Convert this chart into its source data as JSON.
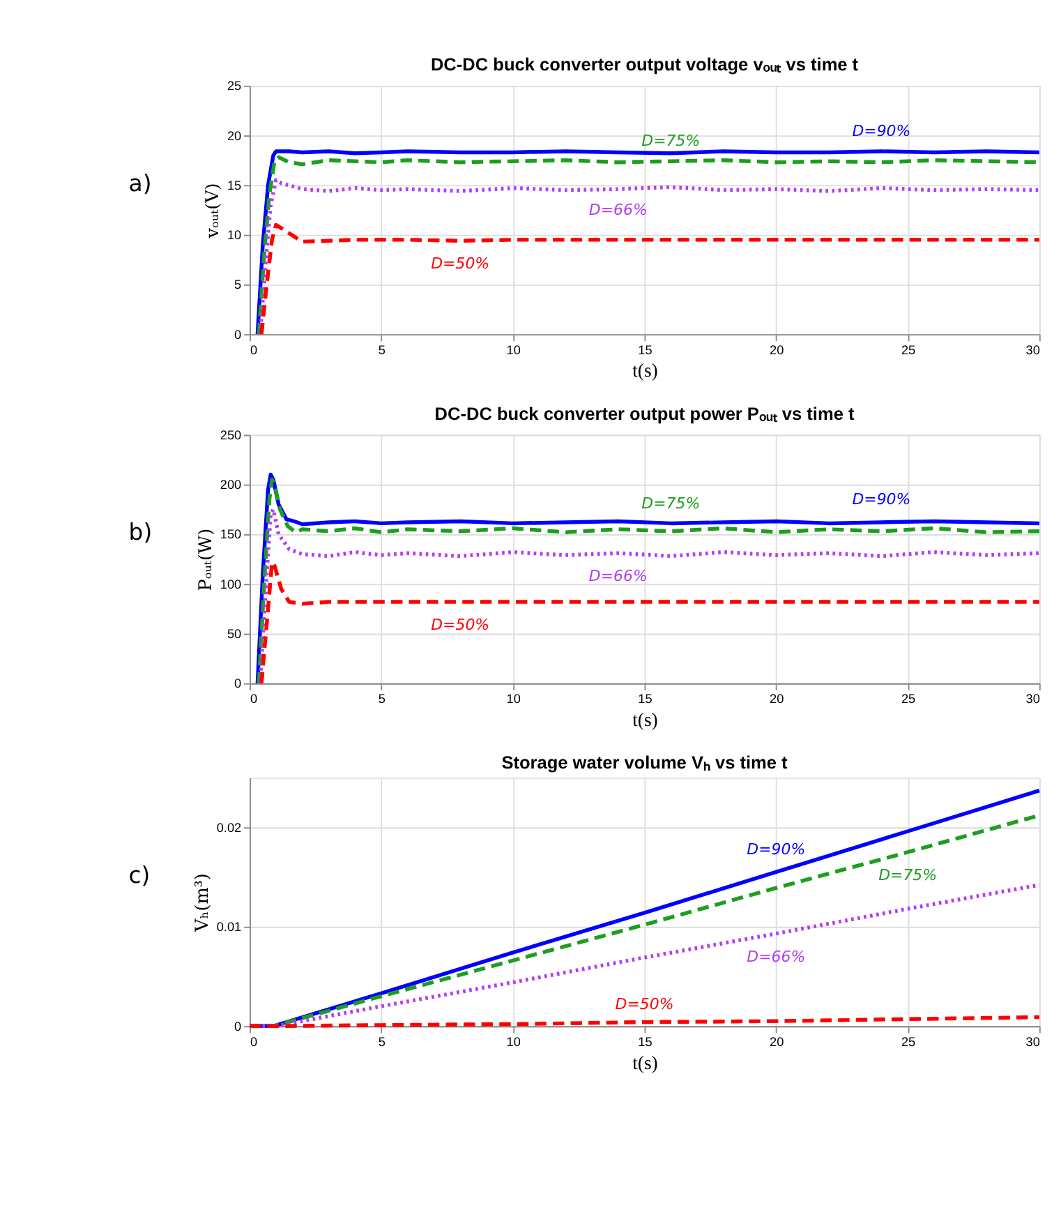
{
  "chart_data": [
    {
      "type": "line",
      "title": "DC-DC buck converter output voltage vₒᵤₜ vs time t",
      "xlabel": "t(s)",
      "ylabel": "vₒᵤₜ(V)",
      "xlim": [
        0,
        30
      ],
      "ylim": [
        0,
        25
      ],
      "xticks": [
        0,
        5,
        10,
        15,
        20,
        25,
        30
      ],
      "yticks": [
        0,
        5,
        10,
        15,
        20,
        25
      ],
      "grid": true,
      "annotations": [
        "a)"
      ],
      "series": [
        {
          "name": "D=90%",
          "color": "#0000ff",
          "line_style": "solid",
          "x": [
            0.3,
            0.5,
            0.7,
            0.9,
            1.0,
            1.5,
            2,
            3,
            4,
            5,
            6,
            8,
            10,
            12,
            14,
            16,
            18,
            20,
            22,
            24,
            26,
            28,
            30
          ],
          "values": [
            0,
            9,
            15,
            18,
            18.4,
            18.4,
            18.3,
            18.4,
            18.2,
            18.3,
            18.4,
            18.3,
            18.3,
            18.4,
            18.3,
            18.2,
            18.4,
            18.3,
            18.3,
            18.4,
            18.3,
            18.4,
            18.3
          ]
        },
        {
          "name": "D=75%",
          "color": "#1e9e1e",
          "line_style": "dashed",
          "x": [
            0.35,
            0.55,
            0.75,
            0.95,
            1.1,
            1.5,
            2,
            3,
            4,
            5,
            6,
            8,
            10,
            12,
            14,
            16,
            18,
            20,
            22,
            24,
            26,
            28,
            30
          ],
          "values": [
            0,
            8,
            14,
            17.5,
            17.8,
            17.3,
            17.1,
            17.5,
            17.4,
            17.3,
            17.5,
            17.3,
            17.4,
            17.5,
            17.3,
            17.4,
            17.5,
            17.3,
            17.4,
            17.3,
            17.5,
            17.4,
            17.3
          ]
        },
        {
          "name": "D=66%",
          "color": "#b43cf0",
          "line_style": "dotted",
          "x": [
            0.4,
            0.6,
            0.8,
            1.0,
            1.2,
            2,
            3,
            4,
            5,
            6,
            8,
            10,
            12,
            14,
            16,
            18,
            20,
            22,
            24,
            26,
            28,
            30
          ],
          "values": [
            0,
            7,
            13,
            15.5,
            15.2,
            14.6,
            14.4,
            14.7,
            14.5,
            14.6,
            14.4,
            14.7,
            14.5,
            14.6,
            14.8,
            14.5,
            14.6,
            14.4,
            14.7,
            14.5,
            14.6,
            14.5
          ]
        },
        {
          "name": "D=50%",
          "color": "#ff0000",
          "line_style": "dashed",
          "x": [
            0.45,
            0.65,
            0.85,
            1.0,
            1.3,
            2,
            3,
            4,
            5,
            6,
            8,
            10,
            12,
            14,
            16,
            18,
            20,
            22,
            24,
            26,
            28,
            30
          ],
          "values": [
            0,
            5,
            9.5,
            11,
            10.5,
            9.3,
            9.4,
            9.5,
            9.5,
            9.5,
            9.4,
            9.5,
            9.5,
            9.5,
            9.5,
            9.5,
            9.5,
            9.5,
            9.5,
            9.5,
            9.5,
            9.5
          ]
        }
      ]
    },
    {
      "type": "line",
      "title": "DC-DC buck converter output power Pₒᵤₜ vs time t",
      "xlabel": "t(s)",
      "ylabel": "Pₒᵤₜ(W)",
      "xlim": [
        0,
        30
      ],
      "ylim": [
        0,
        250
      ],
      "xticks": [
        0,
        5,
        10,
        15,
        20,
        25,
        30
      ],
      "yticks": [
        0,
        50,
        100,
        150,
        200,
        250
      ],
      "grid": true,
      "annotations": [
        "b)"
      ],
      "series": [
        {
          "name": "D=90%",
          "color": "#0000ff",
          "line_style": "solid",
          "x": [
            0.3,
            0.5,
            0.7,
            0.8,
            0.9,
            1.1,
            1.4,
            1.7,
            2,
            3,
            4,
            5,
            6,
            8,
            10,
            12,
            14,
            16,
            18,
            20,
            22,
            24,
            26,
            28,
            30
          ],
          "values": [
            0,
            110,
            195,
            210,
            205,
            180,
            165,
            163,
            160,
            162,
            163,
            161,
            162,
            163,
            161,
            162,
            163,
            161,
            162,
            163,
            161,
            162,
            163,
            162,
            161
          ]
        },
        {
          "name": "D=75%",
          "color": "#1e9e1e",
          "line_style": "dashed",
          "x": [
            0.35,
            0.55,
            0.75,
            0.85,
            0.95,
            1.15,
            1.45,
            1.75,
            2,
            3,
            4,
            5,
            6,
            8,
            10,
            12,
            14,
            16,
            18,
            20,
            22,
            24,
            26,
            28,
            30
          ],
          "values": [
            0,
            100,
            185,
            205,
            200,
            175,
            158,
            152,
            155,
            153,
            156,
            152,
            155,
            153,
            156,
            152,
            155,
            153,
            156,
            152,
            155,
            153,
            156,
            152,
            153
          ]
        },
        {
          "name": "D=66%",
          "color": "#b43cf0",
          "line_style": "dotted",
          "x": [
            0.4,
            0.6,
            0.8,
            0.9,
            1.1,
            1.5,
            2,
            3,
            4,
            5,
            6,
            8,
            10,
            12,
            14,
            16,
            18,
            20,
            22,
            24,
            26,
            28,
            30
          ],
          "values": [
            0,
            90,
            170,
            175,
            150,
            135,
            130,
            128,
            132,
            129,
            131,
            128,
            132,
            129,
            131,
            128,
            132,
            129,
            131,
            128,
            132,
            129,
            131
          ]
        },
        {
          "name": "D=50%",
          "color": "#ff0000",
          "line_style": "dashed",
          "x": [
            0.45,
            0.65,
            0.85,
            0.95,
            1.2,
            1.5,
            2,
            3,
            4,
            5,
            6,
            8,
            10,
            12,
            14,
            16,
            18,
            20,
            22,
            24,
            26,
            28,
            30
          ],
          "values": [
            0,
            60,
            122,
            118,
            95,
            82,
            80,
            82,
            82,
            82,
            82,
            82,
            82,
            82,
            82,
            82,
            82,
            82,
            82,
            82,
            82,
            82,
            82
          ]
        }
      ]
    },
    {
      "type": "line",
      "title": "Storage water volume Vₕ vs time t",
      "xlabel": "t(s)",
      "ylabel": "Vₕ(m³)",
      "xlim": [
        0,
        30
      ],
      "ylim": [
        0,
        0.025
      ],
      "xticks": [
        0,
        5,
        10,
        15,
        20,
        25,
        30
      ],
      "yticks": [
        0,
        0.01,
        0.02
      ],
      "grid": true,
      "annotations": [
        "c)"
      ],
      "series": [
        {
          "name": "D=90%",
          "color": "#0000ff",
          "line_style": "solid",
          "x": [
            0,
            0.9,
            5,
            10,
            15,
            20,
            25,
            30
          ],
          "values": [
            0,
            0,
            0.0033,
            0.0074,
            0.0114,
            0.0155,
            0.0196,
            0.0237
          ]
        },
        {
          "name": "D=75%",
          "color": "#1e9e1e",
          "line_style": "dashed",
          "x": [
            0,
            0.9,
            5,
            10,
            15,
            20,
            25,
            30
          ],
          "values": [
            0,
            0,
            0.003,
            0.0066,
            0.0102,
            0.0139,
            0.0175,
            0.0212
          ]
        },
        {
          "name": "D=66%",
          "color": "#b43cf0",
          "line_style": "dotted",
          "x": [
            0,
            1,
            5,
            10,
            15,
            20,
            25,
            30
          ],
          "values": [
            0,
            0,
            0.002,
            0.0044,
            0.0069,
            0.0093,
            0.0118,
            0.0142
          ]
        },
        {
          "name": "D=50%",
          "color": "#ff0000",
          "line_style": "dashed",
          "x": [
            0,
            1,
            5,
            10,
            15,
            20,
            25,
            30
          ],
          "values": [
            0,
            0,
            0.0001,
            0.0002,
            0.0004,
            0.0005,
            0.0007,
            0.0009
          ]
        }
      ]
    }
  ]
}
